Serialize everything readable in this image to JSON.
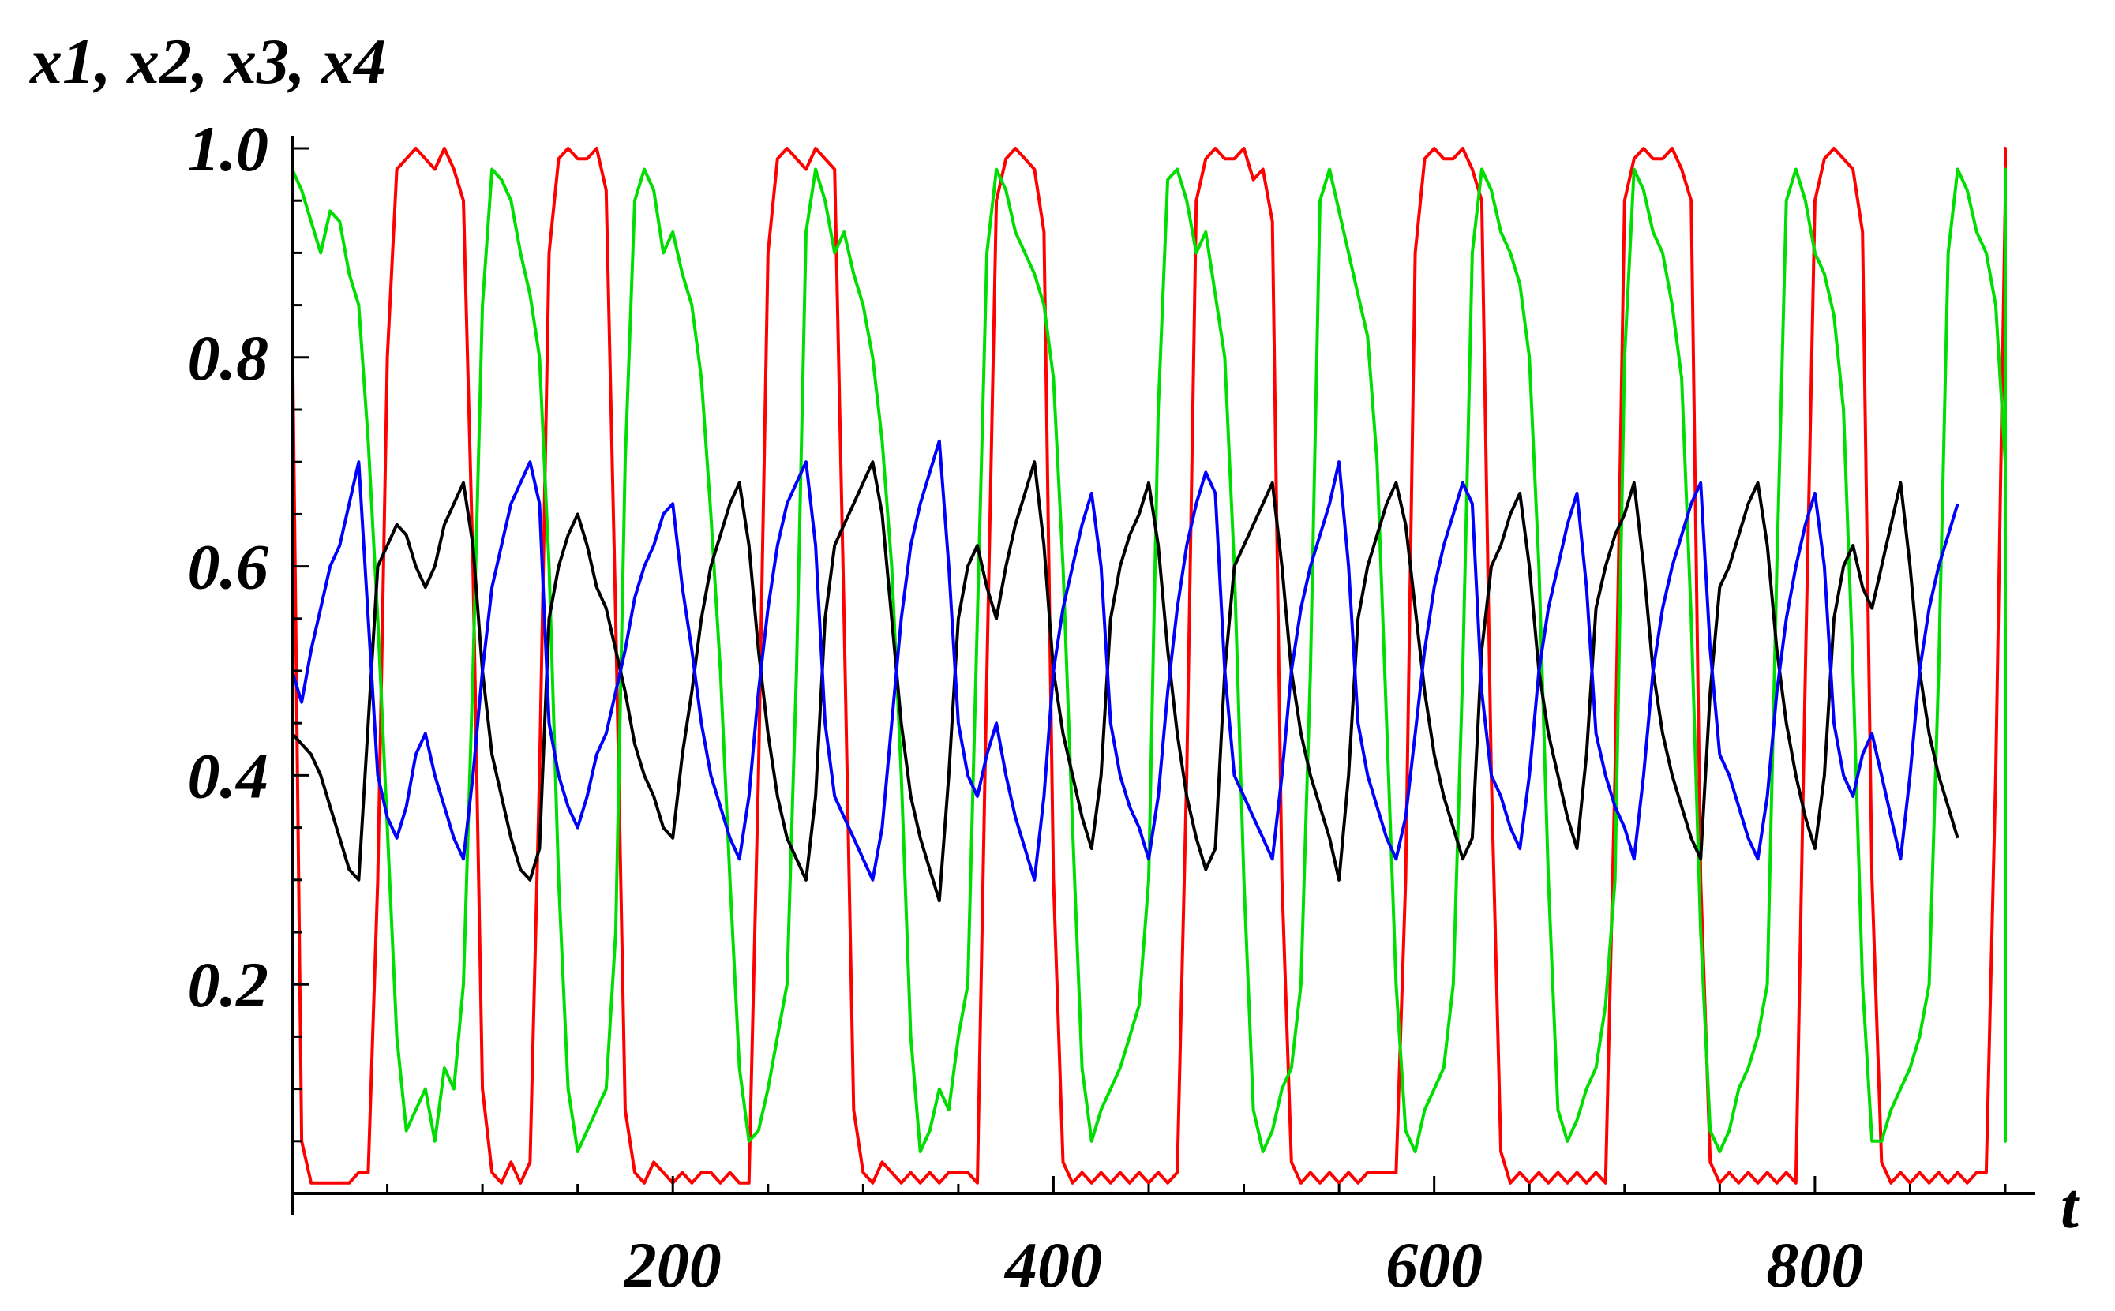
{
  "chart_data": {
    "type": "line",
    "title": "",
    "xlabel": "t",
    "ylabel": "x1, x2, x3, x4",
    "xlim": [
      0,
      900
    ],
    "ylim": [
      0,
      1.0
    ],
    "x_ticks": [
      200,
      400,
      600,
      800
    ],
    "x_tick_labels": [
      "200",
      "400",
      "600",
      "800"
    ],
    "y_ticks": [
      0.2,
      0.4,
      0.6,
      0.8,
      1.0
    ],
    "y_tick_labels": [
      "0.2",
      "0.4",
      "0.6",
      "0.8",
      "1.0"
    ],
    "grid": false,
    "legend": "none",
    "t_step": 5,
    "series": [
      {
        "color": "#ff0000",
        "values": [
          0.85,
          0.05,
          0.01,
          0.01,
          0.01,
          0.01,
          0.01,
          0.02,
          0.02,
          0.3,
          0.8,
          0.98,
          0.99,
          1.0,
          0.99,
          0.98,
          1.0,
          0.98,
          0.95,
          0.6,
          0.1,
          0.02,
          0.01,
          0.03,
          0.01,
          0.03,
          0.4,
          0.9,
          0.99,
          1.0,
          0.99,
          0.99,
          1.0,
          0.96,
          0.55,
          0.08,
          0.02,
          0.01,
          0.03,
          0.02,
          0.01,
          0.02,
          0.01,
          0.02,
          0.02,
          0.01,
          0.02,
          0.01,
          0.01,
          0.4,
          0.9,
          0.99,
          1.0,
          0.99,
          0.98,
          1.0,
          0.99,
          0.98,
          0.55,
          0.08,
          0.02,
          0.01,
          0.03,
          0.02,
          0.01,
          0.02,
          0.01,
          0.02,
          0.01,
          0.02,
          0.02,
          0.02,
          0.01,
          0.5,
          0.95,
          0.99,
          1.0,
          0.99,
          0.98,
          0.92,
          0.3,
          0.03,
          0.01,
          0.02,
          0.01,
          0.02,
          0.01,
          0.02,
          0.01,
          0.02,
          0.01,
          0.02,
          0.01,
          0.02,
          0.4,
          0.95,
          0.99,
          1.0,
          0.99,
          0.99,
          1.0,
          0.97,
          0.98,
          0.93,
          0.3,
          0.03,
          0.01,
          0.02,
          0.01,
          0.02,
          0.01,
          0.02,
          0.01,
          0.02,
          0.02,
          0.02,
          0.02,
          0.3,
          0.9,
          0.99,
          1.0,
          0.99,
          0.99,
          1.0,
          0.98,
          0.95,
          0.4,
          0.04,
          0.01,
          0.02,
          0.01,
          0.02,
          0.01,
          0.02,
          0.01,
          0.02,
          0.01,
          0.02,
          0.01,
          0.4,
          0.95,
          0.99,
          1.0,
          0.99,
          0.99,
          1.0,
          0.98,
          0.95,
          0.3,
          0.03,
          0.01,
          0.02,
          0.01,
          0.02,
          0.01,
          0.02,
          0.01,
          0.02,
          0.01,
          0.5,
          0.95,
          0.99,
          1.0,
          0.99,
          0.98,
          0.92,
          0.3,
          0.03,
          0.01,
          0.02,
          0.01,
          0.02,
          0.01,
          0.02,
          0.01,
          0.02,
          0.01,
          0.02,
          0.02,
          0.4,
          0.95,
          0.99,
          1.0,
          0.99,
          0.99,
          1.0,
          0.98,
          0.95,
          0.45
        ]
      },
      {
        "color": "#00dd00",
        "values": [
          0.98,
          0.96,
          0.93,
          0.9,
          0.94,
          0.93,
          0.88,
          0.85,
          0.72,
          0.55,
          0.35,
          0.15,
          0.06,
          0.08,
          0.1,
          0.05,
          0.12,
          0.1,
          0.2,
          0.5,
          0.85,
          0.98,
          0.97,
          0.95,
          0.9,
          0.86,
          0.8,
          0.6,
          0.3,
          0.1,
          0.04,
          0.06,
          0.08,
          0.1,
          0.25,
          0.7,
          0.95,
          0.98,
          0.96,
          0.9,
          0.92,
          0.88,
          0.85,
          0.78,
          0.65,
          0.5,
          0.3,
          0.12,
          0.05,
          0.06,
          0.1,
          0.15,
          0.2,
          0.5,
          0.92,
          0.98,
          0.95,
          0.9,
          0.92,
          0.88,
          0.85,
          0.8,
          0.72,
          0.6,
          0.4,
          0.15,
          0.04,
          0.06,
          0.1,
          0.08,
          0.15,
          0.2,
          0.55,
          0.9,
          0.98,
          0.96,
          0.92,
          0.9,
          0.88,
          0.85,
          0.78,
          0.6,
          0.35,
          0.12,
          0.05,
          0.08,
          0.1,
          0.12,
          0.15,
          0.18,
          0.3,
          0.75,
          0.97,
          0.98,
          0.95,
          0.9,
          0.92,
          0.86,
          0.8,
          0.6,
          0.3,
          0.08,
          0.04,
          0.06,
          0.1,
          0.12,
          0.2,
          0.5,
          0.95,
          0.98,
          0.94,
          0.9,
          0.86,
          0.82,
          0.7,
          0.45,
          0.2,
          0.06,
          0.04,
          0.08,
          0.1,
          0.12,
          0.2,
          0.5,
          0.9,
          0.98,
          0.96,
          0.92,
          0.9,
          0.87,
          0.8,
          0.6,
          0.3,
          0.08,
          0.05,
          0.07,
          0.1,
          0.12,
          0.18,
          0.3,
          0.8,
          0.98,
          0.96,
          0.92,
          0.9,
          0.85,
          0.78,
          0.55,
          0.25,
          0.06,
          0.04,
          0.06,
          0.1,
          0.12,
          0.15,
          0.2,
          0.6,
          0.95,
          0.98,
          0.95,
          0.9,
          0.88,
          0.84,
          0.75,
          0.5,
          0.2,
          0.05,
          0.05,
          0.08,
          0.1,
          0.12,
          0.15,
          0.2,
          0.5,
          0.9,
          0.98,
          0.96,
          0.92,
          0.9,
          0.85,
          0.7,
          0.4,
          0.12,
          0.05,
          0.05,
          0.1,
          0.12,
          0.18,
          0.3,
          0.85,
          0.98,
          0.96,
          0.94,
          0.2
        ]
      },
      {
        "color": "#000000",
        "values": [
          0.44,
          0.43,
          0.42,
          0.4,
          0.37,
          0.34,
          0.31,
          0.3,
          0.45,
          0.6,
          0.62,
          0.64,
          0.63,
          0.6,
          0.58,
          0.6,
          0.64,
          0.66,
          0.68,
          0.62,
          0.5,
          0.42,
          0.38,
          0.34,
          0.31,
          0.3,
          0.33,
          0.55,
          0.6,
          0.63,
          0.65,
          0.62,
          0.58,
          0.56,
          0.52,
          0.48,
          0.43,
          0.4,
          0.38,
          0.35,
          0.34,
          0.42,
          0.48,
          0.55,
          0.6,
          0.63,
          0.66,
          0.68,
          0.62,
          0.52,
          0.44,
          0.38,
          0.34,
          0.32,
          0.3,
          0.38,
          0.55,
          0.62,
          0.64,
          0.66,
          0.68,
          0.7,
          0.65,
          0.55,
          0.45,
          0.38,
          0.34,
          0.31,
          0.28,
          0.4,
          0.55,
          0.6,
          0.62,
          0.58,
          0.55,
          0.6,
          0.64,
          0.67,
          0.7,
          0.62,
          0.5,
          0.44,
          0.4,
          0.36,
          0.33,
          0.4,
          0.55,
          0.6,
          0.63,
          0.65,
          0.68,
          0.62,
          0.52,
          0.44,
          0.38,
          0.34,
          0.31,
          0.33,
          0.5,
          0.6,
          0.62,
          0.64,
          0.66,
          0.68,
          0.6,
          0.5,
          0.44,
          0.4,
          0.37,
          0.34,
          0.3,
          0.4,
          0.55,
          0.6,
          0.63,
          0.66,
          0.68,
          0.64,
          0.56,
          0.48,
          0.42,
          0.38,
          0.35,
          0.32,
          0.34,
          0.52,
          0.6,
          0.62,
          0.65,
          0.67,
          0.6,
          0.5,
          0.44,
          0.4,
          0.36,
          0.33,
          0.42,
          0.56,
          0.6,
          0.63,
          0.65,
          0.68,
          0.6,
          0.5,
          0.44,
          0.4,
          0.37,
          0.34,
          0.32,
          0.48,
          0.58,
          0.6,
          0.63,
          0.66,
          0.68,
          0.62,
          0.52,
          0.45,
          0.4,
          0.36,
          0.33,
          0.4,
          0.55,
          0.6,
          0.62,
          0.58,
          0.56,
          0.6,
          0.64,
          0.68,
          0.6,
          0.5,
          0.44,
          0.4,
          0.37,
          0.34
        ]
      },
      {
        "color": "#0000ff",
        "values": [
          0.5,
          0.47,
          0.52,
          0.56,
          0.6,
          0.62,
          0.66,
          0.7,
          0.55,
          0.4,
          0.36,
          0.34,
          0.37,
          0.42,
          0.44,
          0.4,
          0.37,
          0.34,
          0.32,
          0.4,
          0.5,
          0.58,
          0.62,
          0.66,
          0.68,
          0.7,
          0.66,
          0.45,
          0.4,
          0.37,
          0.35,
          0.38,
          0.42,
          0.44,
          0.48,
          0.52,
          0.57,
          0.6,
          0.62,
          0.65,
          0.66,
          0.58,
          0.52,
          0.45,
          0.4,
          0.37,
          0.34,
          0.32,
          0.38,
          0.48,
          0.56,
          0.62,
          0.66,
          0.68,
          0.7,
          0.62,
          0.45,
          0.38,
          0.36,
          0.34,
          0.32,
          0.3,
          0.35,
          0.45,
          0.55,
          0.62,
          0.66,
          0.69,
          0.72,
          0.6,
          0.45,
          0.4,
          0.38,
          0.42,
          0.45,
          0.4,
          0.36,
          0.33,
          0.3,
          0.38,
          0.5,
          0.56,
          0.6,
          0.64,
          0.67,
          0.6,
          0.45,
          0.4,
          0.37,
          0.35,
          0.32,
          0.38,
          0.48,
          0.56,
          0.62,
          0.66,
          0.69,
          0.67,
          0.5,
          0.4,
          0.38,
          0.36,
          0.34,
          0.32,
          0.4,
          0.5,
          0.56,
          0.6,
          0.63,
          0.66,
          0.7,
          0.6,
          0.45,
          0.4,
          0.37,
          0.34,
          0.32,
          0.36,
          0.44,
          0.52,
          0.58,
          0.62,
          0.65,
          0.68,
          0.66,
          0.48,
          0.4,
          0.38,
          0.35,
          0.33,
          0.4,
          0.5,
          0.56,
          0.6,
          0.64,
          0.67,
          0.58,
          0.44,
          0.4,
          0.37,
          0.35,
          0.32,
          0.4,
          0.5,
          0.56,
          0.6,
          0.63,
          0.66,
          0.68,
          0.52,
          0.42,
          0.4,
          0.37,
          0.34,
          0.32,
          0.38,
          0.48,
          0.55,
          0.6,
          0.64,
          0.67,
          0.6,
          0.45,
          0.4,
          0.38,
          0.42,
          0.44,
          0.4,
          0.36,
          0.32,
          0.4,
          0.5,
          0.56,
          0.6,
          0.63,
          0.66
        ]
      }
    ]
  }
}
